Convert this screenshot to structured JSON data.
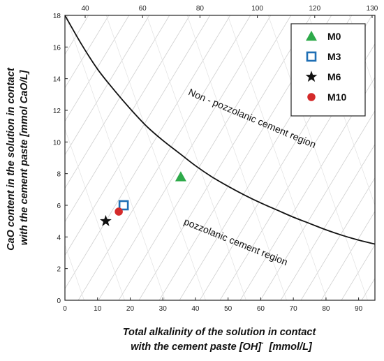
{
  "chart_data": {
    "type": "scatter",
    "xlabel": [
      "Total alkalinity of the solution in contact",
      "with the cement paste [OH]",
      "-",
      "  [mmol/L]"
    ],
    "ylabel": [
      "CaO content in the solution in contact",
      "with the cement paste [mmol CaO/L]"
    ],
    "xlim": [
      0,
      95
    ],
    "ylim": [
      0,
      18
    ],
    "x_ticks": [
      "0",
      "10",
      "20",
      "30",
      "40",
      "50",
      "60",
      "70",
      "80",
      "90"
    ],
    "y_ticks": [
      "0",
      "2",
      "4",
      "6",
      "8",
      "10",
      "12",
      "14",
      "16",
      "18"
    ],
    "top_ticks": [
      "40",
      "60",
      "80",
      "100",
      "120",
      "130"
    ],
    "series": [
      {
        "name": "M0",
        "marker": "triangle",
        "color": "#2eaa4a",
        "points": [
          [
            35.5,
            7.8
          ]
        ]
      },
      {
        "name": "M3",
        "marker": "square-open",
        "color": "#1f6fb5",
        "points": [
          [
            18,
            6.0
          ]
        ]
      },
      {
        "name": "M6",
        "marker": "star",
        "color": "#111111",
        "points": [
          [
            12.5,
            5.0
          ]
        ]
      },
      {
        "name": "M10",
        "marker": "circle",
        "color": "#d42a2a",
        "points": [
          [
            16.5,
            5.6
          ]
        ]
      }
    ],
    "boundary_curve": [
      [
        0,
        18
      ],
      [
        5,
        16.2
      ],
      [
        10,
        14.6
      ],
      [
        15,
        13.3
      ],
      [
        20,
        12.1
      ],
      [
        25,
        11.0
      ],
      [
        30,
        10.1
      ],
      [
        35,
        9.3
      ],
      [
        40,
        8.5
      ],
      [
        45,
        7.8
      ],
      [
        50,
        7.2
      ],
      [
        55,
        6.65
      ],
      [
        60,
        6.15
      ],
      [
        65,
        5.7
      ],
      [
        70,
        5.25
      ],
      [
        75,
        4.85
      ],
      [
        80,
        4.45
      ],
      [
        85,
        4.1
      ],
      [
        90,
        3.8
      ],
      [
        95,
        3.55
      ]
    ],
    "annotations": [
      {
        "text": "Non - pozzolanic cement region",
        "x": 57,
        "y": 11.3,
        "angle": 23
      },
      {
        "text": "pozzolanic cement region",
        "x": 52,
        "y": 3.5,
        "angle": 22
      }
    ],
    "legend": {
      "position": "top-right"
    },
    "grid": "diagonal"
  }
}
